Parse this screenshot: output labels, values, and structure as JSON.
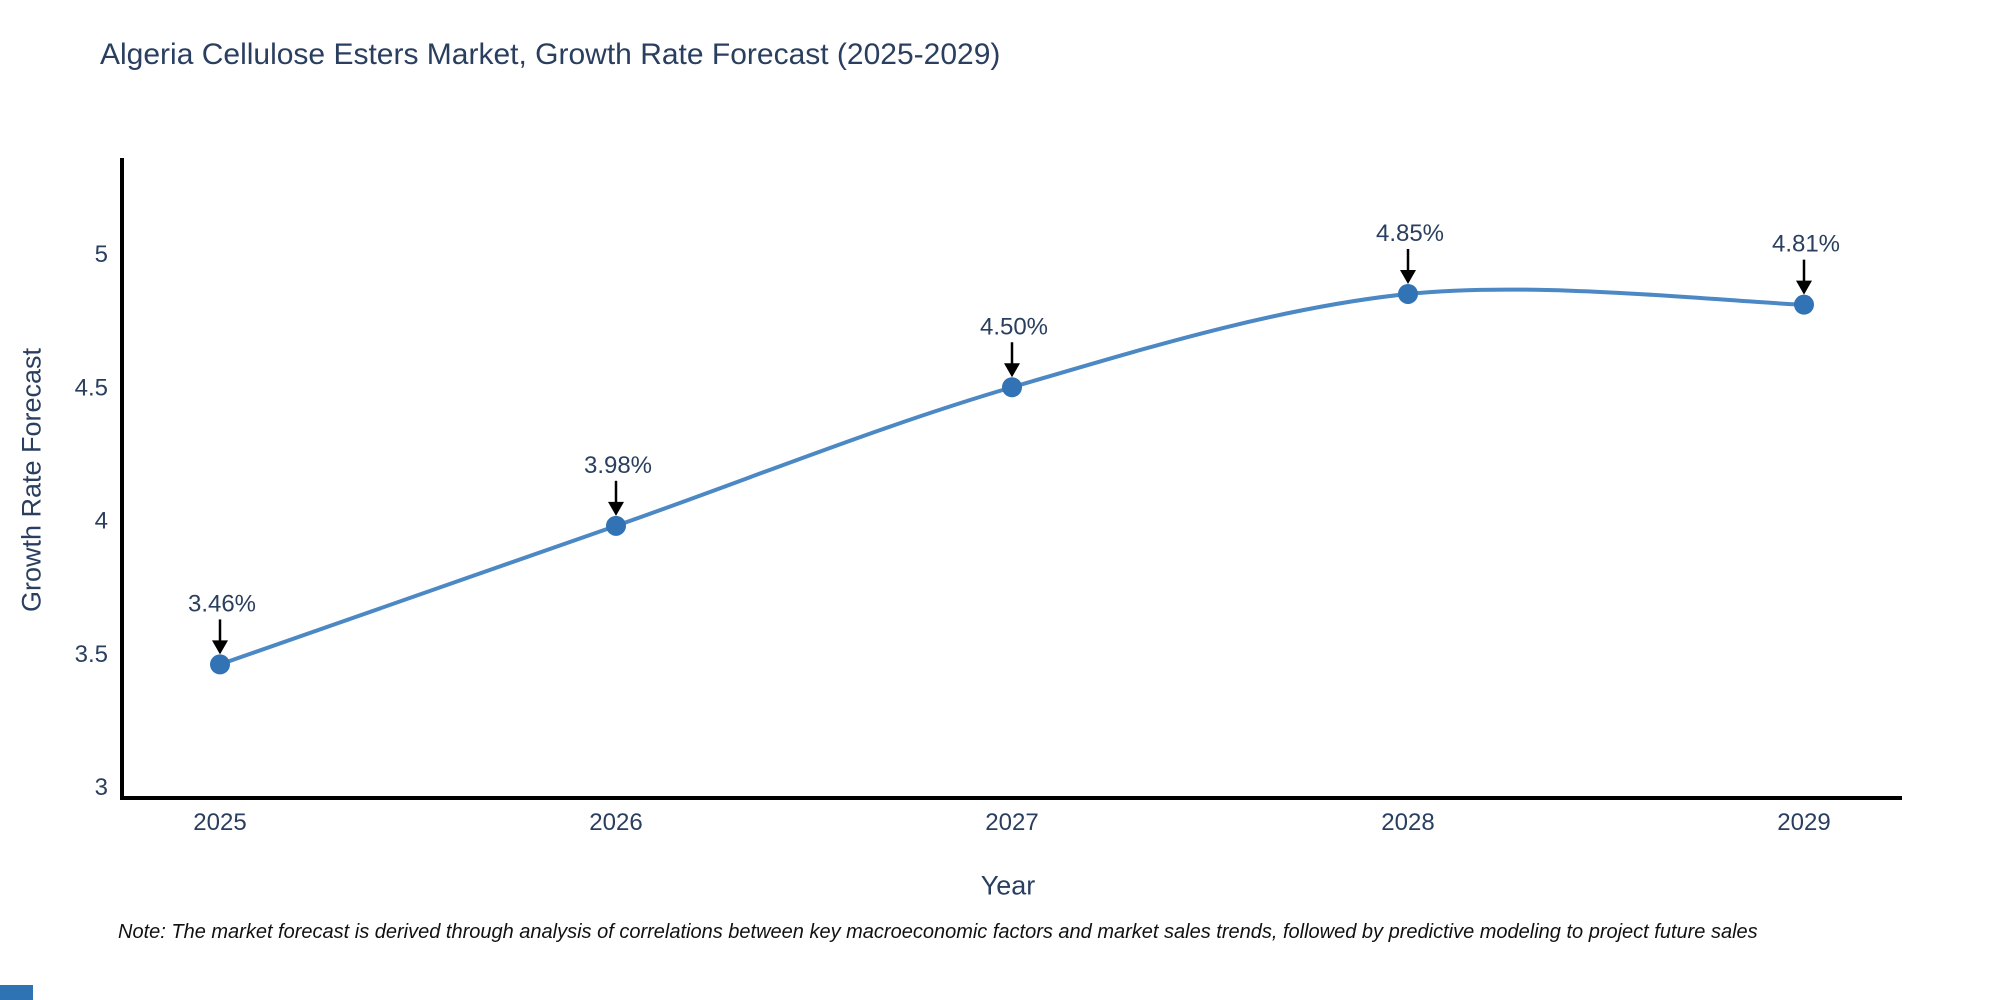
{
  "title": {
    "text": "Algeria Cellulose Esters Market, Growth Rate Forecast (2025-2029)",
    "color": "#2a3f5f"
  },
  "note": {
    "text": "Note: The market forecast is derived through analysis of correlations between key macroeconomic factors and market sales trends, followed by predictive modeling to project future sales"
  },
  "corner_artifact_color": "#2e74b5",
  "chart_data": {
    "type": "line",
    "title": "Algeria Cellulose Esters Market, Growth Rate Forecast (2025-2029)",
    "x": [
      "2025",
      "2026",
      "2027",
      "2028",
      "2029"
    ],
    "series": [
      {
        "name": "Growth Rate Forecast",
        "values": [
          3.46,
          3.98,
          4.5,
          4.85,
          4.81
        ]
      }
    ],
    "point_labels": [
      "3.46%",
      "3.98%",
      "4.50%",
      "4.85%",
      "4.81%"
    ],
    "xlabel": "Year",
    "ylabel": "Growth Rate Forecast",
    "ylim": [
      2.95,
      5.41
    ],
    "yticks": [
      "3",
      "3.5",
      "4",
      "4.5",
      "5"
    ],
    "ytick_values": [
      3,
      3.5,
      4,
      4.5,
      5
    ],
    "grid": false,
    "legend": "none",
    "line_color": "#4c88c4",
    "marker_color": "#3173b4",
    "axis_color": "#000000",
    "text_color": "#2a3f5f",
    "annotation_arrow_color": "#000000",
    "line_shape": "spline"
  }
}
